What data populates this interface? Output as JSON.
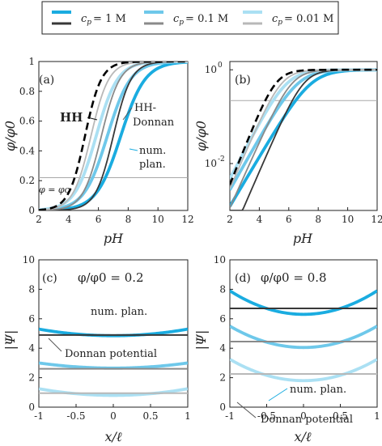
{
  "legend": {
    "items": [
      {
        "label": "c_p = 1 M",
        "sub": "p",
        "value": "= 1 M",
        "light": "#1aace0",
        "dark": "#383838"
      },
      {
        "label": "c_p = 0.1 M",
        "sub": "p",
        "value": "= 0.1 M",
        "light": "#6ec8ea",
        "dark": "#8a8a8a"
      },
      {
        "label": "c_p = 0.01 M",
        "sub": "p",
        "value": "= 0.01 M",
        "light": "#abe0f3",
        "dark": "#b8b8b8"
      }
    ]
  },
  "colors": {
    "hh": "#000000",
    "ref_line": "#a8a8a8",
    "annotation_num": "#1aace0",
    "annotation_donnan": "#555555"
  },
  "chart_data": [
    {
      "id": "a",
      "type": "line",
      "panel_label": "(a)",
      "xlabel": "pH",
      "ylabel": "φ/φ0",
      "xlim": [
        2,
        12
      ],
      "ylim": [
        0,
        1
      ],
      "xticks": [
        "2",
        "4",
        "6",
        "8",
        "10",
        "12"
      ],
      "yticks": [
        "0",
        "0.2",
        "0.4",
        "0.6",
        "0.8",
        "1"
      ],
      "annotations": {
        "hh": "HH",
        "donnan_1": "HH-",
        "donnan_2": "Donnan",
        "num_1": "num.",
        "num_2": "plan.",
        "phic": "φ = φc"
      },
      "reference_line_y": 0.22,
      "curve_model": "sigmoid",
      "series": [
        {
          "name": "HH",
          "pH50": 5.1,
          "s": 0.55,
          "style": "dashed"
        },
        {
          "name": "HH-Donnan",
          "group": 0,
          "pH50": 7.0,
          "s": 0.6,
          "style": "dark"
        },
        {
          "name": "HH-Donnan",
          "group": 1,
          "pH50": 6.2,
          "s": 0.62,
          "style": "dark"
        },
        {
          "name": "HH-Donnan",
          "group": 2,
          "pH50": 5.5,
          "s": 0.6,
          "style": "dark"
        },
        {
          "name": "num. plan.",
          "group": 0,
          "pH50": 7.5,
          "s": 0.82,
          "style": "light"
        },
        {
          "name": "num. plan.",
          "group": 1,
          "pH50": 6.6,
          "s": 0.78,
          "style": "light"
        },
        {
          "name": "num. plan.",
          "group": 2,
          "pH50": 5.85,
          "s": 0.72,
          "style": "light"
        }
      ]
    },
    {
      "id": "b",
      "type": "line",
      "panel_label": "(b)",
      "xlabel": "pH",
      "ylabel": "φ/φ0",
      "xlim": [
        2,
        12
      ],
      "ylim": [
        0.001,
        1.5
      ],
      "yscale": "log",
      "xticks": [
        "2",
        "4",
        "6",
        "8",
        "10",
        "12"
      ],
      "yticks": [
        {
          "base": "10",
          "exp": "-2",
          "value": 0.01
        },
        {
          "base": "10",
          "exp": "0",
          "value": 1
        }
      ],
      "reference_line_y": 0.22,
      "curve_model": "sigmoid",
      "series": [
        {
          "name": "HH",
          "pH50": 5.1,
          "s": 0.55,
          "style": "dashed"
        },
        {
          "name": "HH-Donnan",
          "group": 0,
          "pH50": 7.0,
          "s": 0.6,
          "style": "dark"
        },
        {
          "name": "HH-Donnan",
          "group": 1,
          "pH50": 6.2,
          "s": 0.62,
          "style": "dark"
        },
        {
          "name": "HH-Donnan",
          "group": 2,
          "pH50": 5.5,
          "s": 0.6,
          "style": "dark"
        },
        {
          "name": "num. plan.",
          "group": 0,
          "pH50": 7.5,
          "s": 0.82,
          "style": "light"
        },
        {
          "name": "num. plan.",
          "group": 1,
          "pH50": 6.6,
          "s": 0.78,
          "style": "light"
        },
        {
          "name": "num. plan.",
          "group": 2,
          "pH50": 5.85,
          "s": 0.72,
          "style": "light"
        }
      ]
    },
    {
      "id": "c",
      "type": "line",
      "panel_label": "(c)",
      "title": "φ/φ0 = 0.2",
      "xlabel": "x/ℓ",
      "ylabel": "|Ψ|",
      "xlim": [
        -1,
        1
      ],
      "ylim": [
        0,
        10
      ],
      "xticks": [
        "-1",
        "-0.5",
        "0",
        "0.5",
        "1"
      ],
      "yticks": [
        "0",
        "2",
        "4",
        "6",
        "8",
        "10"
      ],
      "annotations": {
        "num": "num. plan.",
        "donnan": "Donnan potential"
      },
      "curve_model": "y = center + (edge - center) * x^2",
      "series": [
        {
          "name": "Donnan potential",
          "group": 0,
          "value": 4.9,
          "style": "dark"
        },
        {
          "name": "Donnan potential",
          "group": 1,
          "value": 2.6,
          "style": "dark"
        },
        {
          "name": "Donnan potential",
          "group": 2,
          "value": 0.95,
          "style": "dark"
        },
        {
          "name": "num. plan.",
          "group": 0,
          "center": 4.85,
          "edge": 5.3,
          "style": "light"
        },
        {
          "name": "num. plan.",
          "group": 1,
          "center": 2.65,
          "edge": 3.0,
          "style": "light"
        },
        {
          "name": "num. plan.",
          "group": 2,
          "center": 0.8,
          "edge": 1.25,
          "style": "light"
        }
      ]
    },
    {
      "id": "d",
      "type": "line",
      "panel_label": "(d)",
      "title": "φ/φ0 = 0.8",
      "xlabel": "x/ℓ",
      "ylabel": "|Ψ|",
      "xlim": [
        -1,
        1
      ],
      "ylim": [
        0,
        10
      ],
      "xticks": [
        "-1",
        "-0.5",
        "0",
        "0.5",
        "1"
      ],
      "yticks": [
        "0",
        "2",
        "4",
        "6",
        "8",
        "10"
      ],
      "annotations": {
        "num": "num. plan.",
        "donnan": "Donnan potential"
      },
      "curve_model": "y = center + (edge - center) * x^2",
      "series": [
        {
          "name": "Donnan potential",
          "group": 0,
          "value": 6.7,
          "style": "dark"
        },
        {
          "name": "Donnan potential",
          "group": 1,
          "value": 4.45,
          "style": "dark"
        },
        {
          "name": "Donnan potential",
          "group": 2,
          "value": 2.25,
          "style": "dark"
        },
        {
          "name": "num. plan.",
          "group": 0,
          "center": 6.3,
          "edge": 7.9,
          "style": "light"
        },
        {
          "name": "num. plan.",
          "group": 1,
          "center": 4.05,
          "edge": 5.5,
          "style": "light"
        },
        {
          "name": "num. plan.",
          "group": 2,
          "center": 1.8,
          "edge": 3.25,
          "style": "light"
        }
      ]
    }
  ]
}
